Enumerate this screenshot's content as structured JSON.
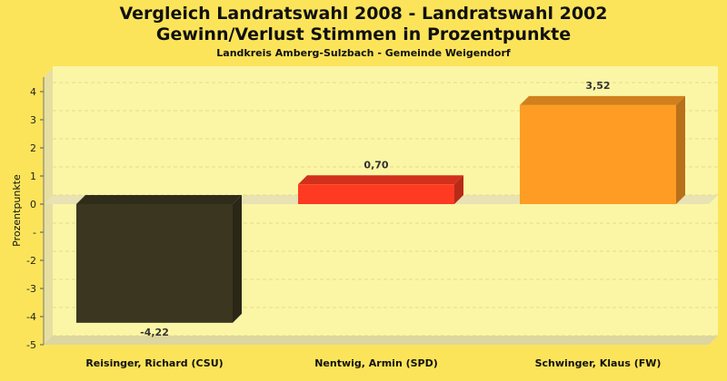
{
  "chart_data": {
    "type": "bar",
    "title": "Vergleich Landratswahl 2008 - Landratswahl 2002",
    "title_line2": "Gewinn/Verlust Stimmen in Prozentpunkte",
    "subtitle": "Landkreis Amberg-Sulzbach - Gemeinde Weigendorf",
    "ylabel": "Prozentpunkte",
    "xlabel": "",
    "ylim": [
      -5,
      4
    ],
    "yticks": [
      "4",
      "3",
      "2",
      "1",
      "0",
      "-",
      "-2",
      "-3",
      "-4",
      "-5"
    ],
    "grid": true,
    "categories": [
      "Reisinger, Richard (CSU)",
      "Nentwig, Armin (SPD)",
      "Schwinger, Klaus (FW)"
    ],
    "values": [
      -4.22,
      0.7,
      3.52
    ],
    "data_labels": [
      "-4,22",
      "0,70",
      "3,52"
    ],
    "colors": [
      "#3a3620",
      "#ff3a22",
      "#ff9c24"
    ]
  }
}
